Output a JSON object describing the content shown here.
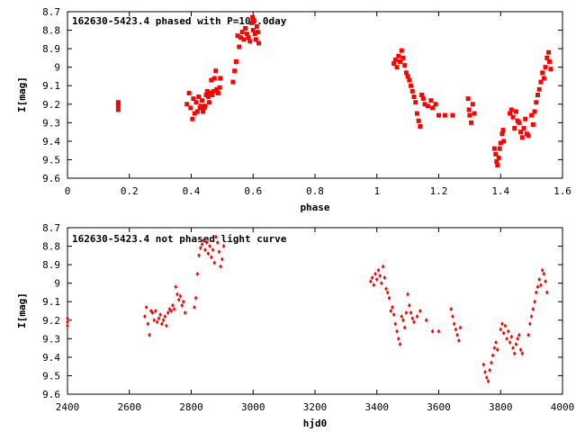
{
  "chart_data": [
    {
      "type": "scatter",
      "title": "162630-5423.4 phased with P=109.0day",
      "xlabel": "phase",
      "ylabel": "I[mag]",
      "xlim": [
        0,
        1.6
      ],
      "ylim": [
        8.7,
        9.6
      ],
      "y_inverted": true,
      "grid": false,
      "marker_color": "#ff0000",
      "x_ticks": [
        {
          "v": 0,
          "label": "0"
        },
        {
          "v": 0.2,
          "label": "0.2"
        },
        {
          "v": 0.4,
          "label": "0.4"
        },
        {
          "v": 0.6,
          "label": "0.6"
        },
        {
          "v": 0.8,
          "label": "0.8"
        },
        {
          "v": 1.0,
          "label": "1"
        },
        {
          "v": 1.2,
          "label": "1.2"
        },
        {
          "v": 1.4,
          "label": "1.4"
        },
        {
          "v": 1.6,
          "label": "1.6"
        }
      ],
      "y_ticks": [
        {
          "v": 8.7,
          "label": "8.7"
        },
        {
          "v": 8.8,
          "label": "8.8"
        },
        {
          "v": 8.9,
          "label": "8.9"
        },
        {
          "v": 9.0,
          "label": "9"
        },
        {
          "v": 9.1,
          "label": "9.1"
        },
        {
          "v": 9.2,
          "label": "9.2"
        },
        {
          "v": 9.3,
          "label": "9.3"
        },
        {
          "v": 9.4,
          "label": "9.4"
        },
        {
          "v": 9.5,
          "label": "9.5"
        },
        {
          "v": 9.6,
          "label": "9.6"
        }
      ],
      "points": [
        [
          0.164,
          9.19
        ],
        [
          0.164,
          9.21
        ],
        [
          0.164,
          9.23
        ],
        [
          0.164,
          9.2
        ],
        [
          0.386,
          9.2
        ],
        [
          0.393,
          9.14
        ],
        [
          0.398,
          9.22
        ],
        [
          0.404,
          9.28
        ],
        [
          0.407,
          9.17
        ],
        [
          0.411,
          9.25
        ],
        [
          0.416,
          9.19
        ],
        [
          0.42,
          9.24
        ],
        [
          0.424,
          9.16
        ],
        [
          0.428,
          9.22
        ],
        [
          0.431,
          9.21
        ],
        [
          0.435,
          9.18
        ],
        [
          0.438,
          9.24
        ],
        [
          0.442,
          9.22
        ],
        [
          0.445,
          9.21
        ],
        [
          0.448,
          9.15
        ],
        [
          0.452,
          9.13
        ],
        [
          0.455,
          9.16
        ],
        [
          0.458,
          9.19
        ],
        [
          0.461,
          9.14
        ],
        [
          0.465,
          9.07
        ],
        [
          0.468,
          9.15
        ],
        [
          0.472,
          9.13
        ],
        [
          0.475,
          9.06
        ],
        [
          0.479,
          9.02
        ],
        [
          0.482,
          9.12
        ],
        [
          0.487,
          9.14
        ],
        [
          0.492,
          9.11
        ],
        [
          0.494,
          9.06
        ],
        [
          0.535,
          9.08
        ],
        [
          0.54,
          9.02
        ],
        [
          0.545,
          8.97
        ],
        [
          0.55,
          8.83
        ],
        [
          0.555,
          8.89
        ],
        [
          0.56,
          8.84
        ],
        [
          0.565,
          8.81
        ],
        [
          0.57,
          8.85
        ],
        [
          0.575,
          8.79
        ],
        [
          0.58,
          8.82
        ],
        [
          0.585,
          8.84
        ],
        [
          0.59,
          8.86
        ],
        [
          0.595,
          8.76
        ],
        [
          0.598,
          8.73
        ],
        [
          0.6,
          8.8
        ],
        [
          0.603,
          8.75
        ],
        [
          0.606,
          8.82
        ],
        [
          0.609,
          8.85
        ],
        [
          0.612,
          8.78
        ],
        [
          0.615,
          8.81
        ],
        [
          0.618,
          8.87
        ],
        [
          1.055,
          8.98
        ],
        [
          1.06,
          8.96
        ],
        [
          1.065,
          9.0
        ],
        [
          1.07,
          8.94
        ],
        [
          1.075,
          8.97
        ],
        [
          1.08,
          8.91
        ],
        [
          1.085,
          8.95
        ],
        [
          1.09,
          8.99
        ],
        [
          1.095,
          9.03
        ],
        [
          1.1,
          9.05
        ],
        [
          1.105,
          9.07
        ],
        [
          1.11,
          9.1
        ],
        [
          1.115,
          9.13
        ],
        [
          1.12,
          9.16
        ],
        [
          1.125,
          9.19
        ],
        [
          1.13,
          9.25
        ],
        [
          1.135,
          9.29
        ],
        [
          1.14,
          9.32
        ],
        [
          1.145,
          9.15
        ],
        [
          1.15,
          9.17
        ],
        [
          1.155,
          9.2
        ],
        [
          1.165,
          9.21
        ],
        [
          1.175,
          9.18
        ],
        [
          1.18,
          9.22
        ],
        [
          1.19,
          9.2
        ],
        [
          1.2,
          9.26
        ],
        [
          1.22,
          9.26
        ],
        [
          1.245,
          9.26
        ],
        [
          1.295,
          9.17
        ],
        [
          1.298,
          9.23
        ],
        [
          1.3,
          9.26
        ],
        [
          1.305,
          9.3
        ],
        [
          1.31,
          9.2
        ],
        [
          1.315,
          9.25
        ],
        [
          1.38,
          9.44
        ],
        [
          1.384,
          9.47
        ],
        [
          1.387,
          9.51
        ],
        [
          1.39,
          9.53
        ],
        [
          1.394,
          9.49
        ],
        [
          1.397,
          9.44
        ],
        [
          1.4,
          9.41
        ],
        [
          1.405,
          9.36
        ],
        [
          1.408,
          9.34
        ],
        [
          1.41,
          9.4
        ],
        [
          1.43,
          9.25
        ],
        [
          1.435,
          9.23
        ],
        [
          1.44,
          9.27
        ],
        [
          1.445,
          9.33
        ],
        [
          1.45,
          9.24
        ],
        [
          1.455,
          9.29
        ],
        [
          1.46,
          9.3
        ],
        [
          1.465,
          9.35
        ],
        [
          1.47,
          9.38
        ],
        [
          1.475,
          9.33
        ],
        [
          1.48,
          9.28
        ],
        [
          1.485,
          9.36
        ],
        [
          1.49,
          9.37
        ],
        [
          1.51,
          9.24
        ],
        [
          1.515,
          9.19
        ],
        [
          1.52,
          9.15
        ],
        [
          1.525,
          9.12
        ],
        [
          1.53,
          9.08
        ],
        [
          1.535,
          9.03
        ],
        [
          1.54,
          9.06
        ],
        [
          1.545,
          9.0
        ],
        [
          1.55,
          8.95
        ],
        [
          1.555,
          8.92
        ],
        [
          1.558,
          8.97
        ],
        [
          1.562,
          9.01
        ],
        [
          1.505,
          9.31
        ],
        [
          1.5,
          9.26
        ]
      ]
    },
    {
      "type": "scatter",
      "title": "162630-5423.4 not phased light curve",
      "xlabel": "hjd0",
      "ylabel": "I[mag]",
      "xlim": [
        2400,
        4000
      ],
      "ylim": [
        8.7,
        9.6
      ],
      "y_inverted": true,
      "grid": false,
      "marker_color": "#ff0000",
      "x_ticks": [
        {
          "v": 2400,
          "label": "2400"
        },
        {
          "v": 2600,
          "label": "2600"
        },
        {
          "v": 2800,
          "label": "2800"
        },
        {
          "v": 3000,
          "label": "3000"
        },
        {
          "v": 3200,
          "label": "3200"
        },
        {
          "v": 3400,
          "label": "3400"
        },
        {
          "v": 3600,
          "label": "3600"
        },
        {
          "v": 3800,
          "label": "3800"
        },
        {
          "v": 4000,
          "label": "4000"
        }
      ],
      "y_ticks": [
        {
          "v": 8.7,
          "label": "8.7"
        },
        {
          "v": 8.8,
          "label": "8.8"
        },
        {
          "v": 8.9,
          "label": "8.9"
        },
        {
          "v": 9.0,
          "label": "9"
        },
        {
          "v": 9.1,
          "label": "9.1"
        },
        {
          "v": 9.2,
          "label": "9.2"
        },
        {
          "v": 9.3,
          "label": "9.3"
        },
        {
          "v": 9.4,
          "label": "9.4"
        },
        {
          "v": 9.5,
          "label": "9.5"
        },
        {
          "v": 9.6,
          "label": "9.6"
        }
      ],
      "points": [
        [
          2400,
          9.19
        ],
        [
          2400,
          9.21
        ],
        [
          2400,
          9.23
        ],
        [
          2650,
          9.18
        ],
        [
          2655,
          9.13
        ],
        [
          2660,
          9.22
        ],
        [
          2665,
          9.28
        ],
        [
          2670,
          9.15
        ],
        [
          2675,
          9.16
        ],
        [
          2680,
          9.2
        ],
        [
          2685,
          9.15
        ],
        [
          2690,
          9.21
        ],
        [
          2695,
          9.19
        ],
        [
          2700,
          9.17
        ],
        [
          2705,
          9.22
        ],
        [
          2710,
          9.2
        ],
        [
          2715,
          9.18
        ],
        [
          2720,
          9.23
        ],
        [
          2725,
          9.16
        ],
        [
          2730,
          9.14
        ],
        [
          2735,
          9.15
        ],
        [
          2740,
          9.12
        ],
        [
          2745,
          9.14
        ],
        [
          2750,
          9.02
        ],
        [
          2755,
          9.06
        ],
        [
          2760,
          9.09
        ],
        [
          2765,
          9.07
        ],
        [
          2770,
          9.12
        ],
        [
          2775,
          9.1
        ],
        [
          2780,
          9.16
        ],
        [
          2810,
          9.13
        ],
        [
          2815,
          9.08
        ],
        [
          2820,
          8.95
        ],
        [
          2825,
          8.85
        ],
        [
          2830,
          8.81
        ],
        [
          2835,
          8.79
        ],
        [
          2840,
          8.77
        ],
        [
          2845,
          8.82
        ],
        [
          2850,
          8.78
        ],
        [
          2855,
          8.84
        ],
        [
          2860,
          8.8
        ],
        [
          2865,
          8.86
        ],
        [
          2870,
          8.82
        ],
        [
          2875,
          8.89
        ],
        [
          2880,
          8.75
        ],
        [
          2885,
          8.78
        ],
        [
          2890,
          8.83
        ],
        [
          2895,
          8.91
        ],
        [
          2900,
          8.87
        ],
        [
          2905,
          8.8
        ],
        [
          3380,
          8.99
        ],
        [
          3385,
          8.97
        ],
        [
          3390,
          9.01
        ],
        [
          3395,
          8.95
        ],
        [
          3400,
          8.98
        ],
        [
          3405,
          8.93
        ],
        [
          3410,
          8.96
        ],
        [
          3415,
          9.0
        ],
        [
          3420,
          8.91
        ],
        [
          3425,
          8.97
        ],
        [
          3430,
          9.03
        ],
        [
          3435,
          9.05
        ],
        [
          3440,
          9.08
        ],
        [
          3445,
          9.15
        ],
        [
          3450,
          9.13
        ],
        [
          3455,
          9.17
        ],
        [
          3460,
          9.22
        ],
        [
          3465,
          9.26
        ],
        [
          3470,
          9.3
        ],
        [
          3475,
          9.33
        ],
        [
          3480,
          9.18
        ],
        [
          3485,
          9.2
        ],
        [
          3490,
          9.24
        ],
        [
          3495,
          9.16
        ],
        [
          3500,
          9.06
        ],
        [
          3505,
          9.12
        ],
        [
          3510,
          9.16
        ],
        [
          3515,
          9.19
        ],
        [
          3520,
          9.21
        ],
        [
          3530,
          9.18
        ],
        [
          3540,
          9.15
        ],
        [
          3560,
          9.2
        ],
        [
          3580,
          9.26
        ],
        [
          3600,
          9.26
        ],
        [
          3640,
          9.14
        ],
        [
          3645,
          9.18
        ],
        [
          3650,
          9.22
        ],
        [
          3655,
          9.25
        ],
        [
          3660,
          9.28
        ],
        [
          3665,
          9.31
        ],
        [
          3670,
          9.24
        ],
        [
          3745,
          9.44
        ],
        [
          3750,
          9.48
        ],
        [
          3755,
          9.51
        ],
        [
          3760,
          9.53
        ],
        [
          3765,
          9.47
        ],
        [
          3770,
          9.43
        ],
        [
          3775,
          9.39
        ],
        [
          3780,
          9.35
        ],
        [
          3785,
          9.32
        ],
        [
          3790,
          9.36
        ],
        [
          3800,
          9.25
        ],
        [
          3805,
          9.22
        ],
        [
          3810,
          9.27
        ],
        [
          3815,
          9.23
        ],
        [
          3820,
          9.3
        ],
        [
          3825,
          9.26
        ],
        [
          3830,
          9.32
        ],
        [
          3835,
          9.29
        ],
        [
          3840,
          9.35
        ],
        [
          3845,
          9.38
        ],
        [
          3850,
          9.33
        ],
        [
          3855,
          9.3
        ],
        [
          3860,
          9.28
        ],
        [
          3865,
          9.36
        ],
        [
          3870,
          9.38
        ],
        [
          3890,
          9.28
        ],
        [
          3895,
          9.22
        ],
        [
          3900,
          9.18
        ],
        [
          3905,
          9.14
        ],
        [
          3910,
          9.1
        ],
        [
          3915,
          9.05
        ],
        [
          3920,
          9.02
        ],
        [
          3925,
          8.98
        ],
        [
          3930,
          9.01
        ],
        [
          3935,
          8.93
        ],
        [
          3940,
          8.95
        ],
        [
          3945,
          8.99
        ],
        [
          3950,
          9.05
        ]
      ]
    }
  ]
}
